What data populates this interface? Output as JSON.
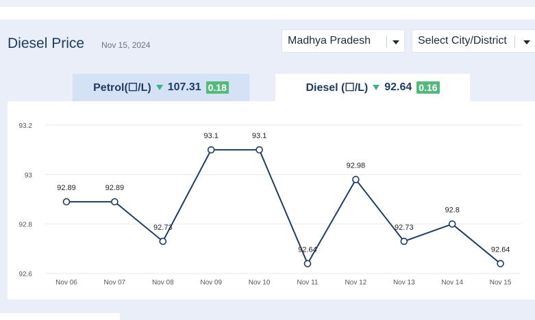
{
  "header": {
    "title": "Diesel Price",
    "date": "Nov 15, 2024"
  },
  "filters": {
    "state": "Madhya Pradesh",
    "city_placeholder": "Select City/District"
  },
  "tabs": [
    {
      "label": "Petrol(☐/L)",
      "price": "107.31",
      "change": "0.18",
      "trend": "down",
      "active": false
    },
    {
      "label": "Diesel (☐/L)",
      "price": "92.64",
      "change": "0.16",
      "trend": "down",
      "active": true
    }
  ],
  "colors": {
    "line": "#1f3b63",
    "badge": "#55b97d",
    "trend_down": "#3fb37f"
  },
  "chart_data": {
    "type": "line",
    "categories": [
      "Nov 06",
      "Nov 07",
      "Nov 08",
      "Nov 09",
      "Nov 10",
      "Nov 11",
      "Nov 12",
      "Nov 13",
      "Nov 14",
      "Nov 15"
    ],
    "values": [
      92.89,
      92.89,
      92.73,
      93.1,
      93.1,
      92.64,
      92.98,
      92.73,
      92.8,
      92.64
    ],
    "data_labels": [
      "92.89",
      "92.89",
      "92.73",
      "93.1",
      "93.1",
      "92.64",
      "92.98",
      "92.73",
      "92.8",
      "92.64"
    ],
    "y_ticks": [
      "92.6",
      "92.8",
      "93",
      "93.2"
    ],
    "ylim": [
      92.6,
      93.2
    ],
    "grid": true,
    "title": "",
    "xlabel": "",
    "ylabel": ""
  }
}
